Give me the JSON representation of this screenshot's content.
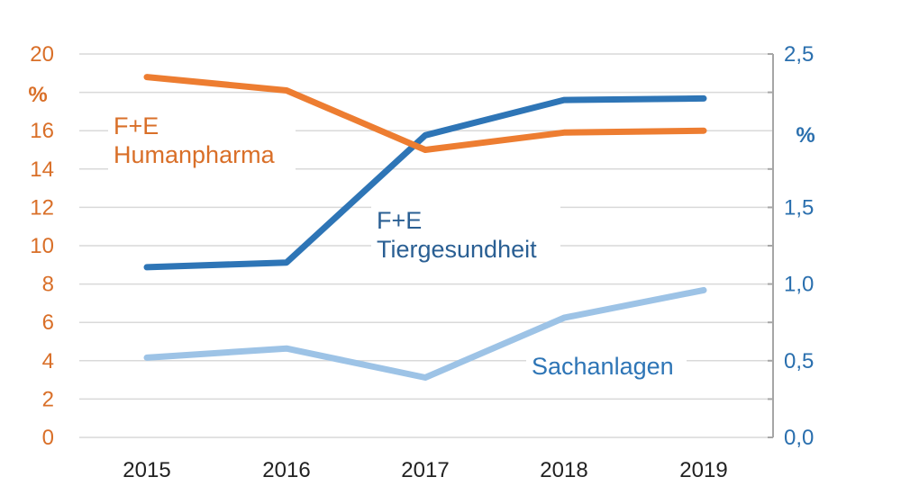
{
  "chart_data": {
    "type": "line",
    "categories": [
      "2015",
      "2016",
      "2017",
      "2018",
      "2019"
    ],
    "y_left": {
      "unit": "%",
      "range": [
        0,
        20
      ],
      "ticks": [
        "0",
        "2",
        "4",
        "6",
        "8",
        "10",
        "12",
        "14",
        "16",
        "18",
        "20"
      ],
      "color": "#d96f28"
    },
    "y_right": {
      "unit": "%",
      "range": [
        0,
        2.5
      ],
      "ticks": [
        "0,0",
        "0,5",
        "1,0",
        "1,5",
        "2,0",
        "2,5"
      ],
      "color": "#2a6fae"
    },
    "grid": true,
    "series": [
      {
        "name": "F+E Humanpharma",
        "label_lines": [
          "F+E",
          "Humanpharma"
        ],
        "axis": "left",
        "color": "#ed7d31",
        "label_color": "#d96f28",
        "values": [
          18.8,
          18.1,
          15.0,
          15.9,
          16.0
        ]
      },
      {
        "name": "F+E Tiergesundheit",
        "label_lines": [
          "F+E",
          "Tiergesundheit"
        ],
        "axis": "right",
        "color": "#2e75b6",
        "label_color": "#2a5f93",
        "values": [
          1.11,
          1.14,
          1.97,
          2.2,
          2.21
        ]
      },
      {
        "name": "Sachanlagen",
        "label_lines": [
          "Sachanlagen"
        ],
        "axis": "right",
        "color": "#9dc3e6",
        "label_color": "#2e75b6",
        "values": [
          0.52,
          0.58,
          0.39,
          0.78,
          0.96
        ]
      }
    ]
  }
}
